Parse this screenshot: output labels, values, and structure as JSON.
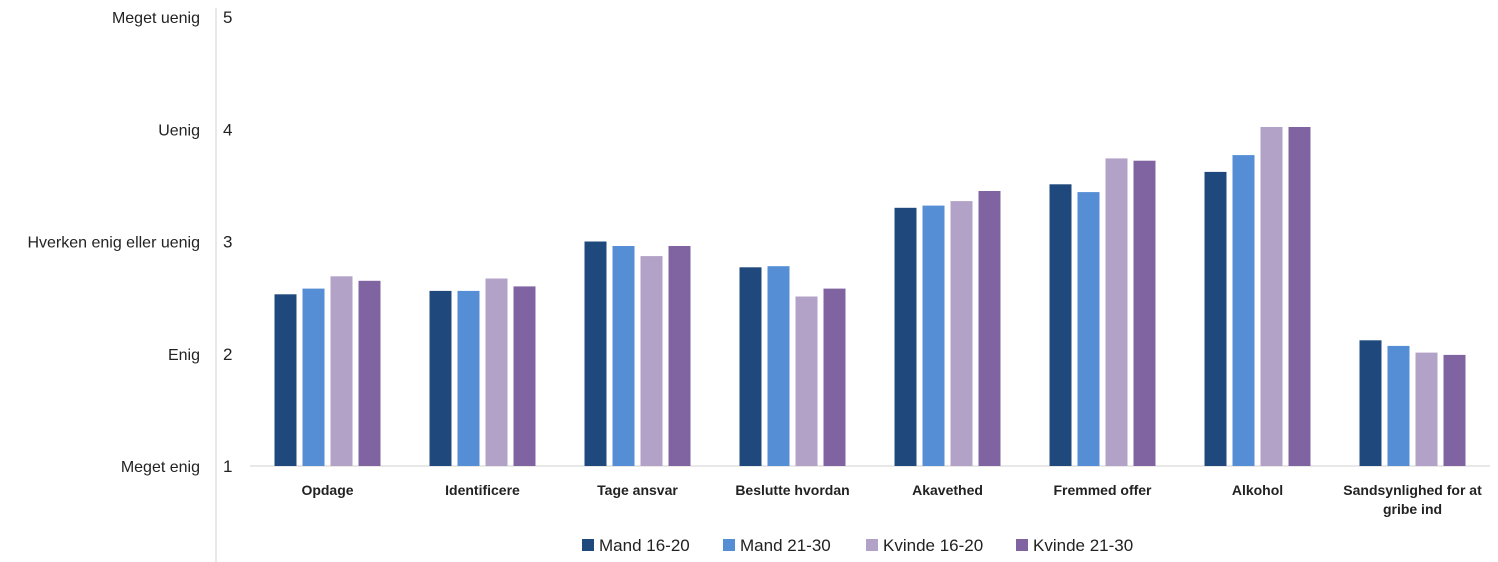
{
  "chart_data": {
    "type": "bar",
    "title": "",
    "xlabel": "",
    "ylabel": "",
    "ylim": [
      1,
      5
    ],
    "y_ticks": [
      1,
      2,
      3,
      4,
      5
    ],
    "y_scale_labels": [
      "Meget enig",
      "Enig",
      "Hverken enig eller uenig",
      "Uenig",
      "Meget uenig"
    ],
    "grid": false,
    "legend_position": "bottom",
    "categories": [
      [
        "Opdage"
      ],
      [
        "Identificere"
      ],
      [
        "Tage ansvar"
      ],
      [
        "Beslutte hvordan"
      ],
      [
        "Akavethed"
      ],
      [
        "Fremmed offer"
      ],
      [
        "Alkohol"
      ],
      [
        "Sandsynlighed for at",
        "gribe ind"
      ]
    ],
    "series": [
      {
        "name": "Mand 16-20",
        "color": "#1f497d",
        "values": [
          2.53,
          2.56,
          3.0,
          2.77,
          3.3,
          3.51,
          3.62,
          2.12
        ]
      },
      {
        "name": "Mand 21-30",
        "color": "#558ed5",
        "values": [
          2.58,
          2.56,
          2.96,
          2.78,
          3.32,
          3.44,
          3.77,
          2.07
        ]
      },
      {
        "name": "Kvinde 16-20",
        "color": "#b3a2c7",
        "values": [
          2.69,
          2.67,
          2.87,
          2.51,
          3.36,
          3.74,
          4.02,
          2.01
        ]
      },
      {
        "name": "Kvinde 21-30",
        "color": "#8064a2",
        "values": [
          2.65,
          2.6,
          2.96,
          2.58,
          3.45,
          3.72,
          4.02,
          1.99
        ]
      }
    ]
  }
}
